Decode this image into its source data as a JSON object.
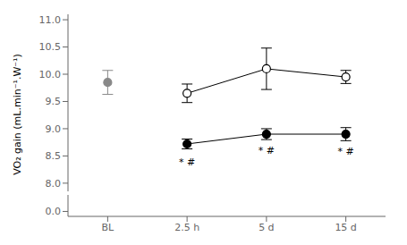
{
  "chart_data": [
    {
      "type": "line",
      "y_label": "VO₂ gain (mL.min⁻¹.W⁻¹)",
      "categories": [
        "BL",
        "2.5 h",
        "5 d",
        "15 d"
      ],
      "tick_labels": "y",
      "series": [
        {
          "type": "scatter",
          "color": "#888888",
          "marker": "circle",
          "values": [
            9.85,
            null,
            null,
            null
          ],
          "errors": [
            0.22,
            null,
            null,
            null
          ]
        },
        {
          "type": "line",
          "color": "#000000",
          "marker": "open_circle",
          "values": [
            null,
            9.65,
            10.1,
            9.95
          ],
          "errors": [
            null,
            0.17,
            0.38,
            0.12
          ]
        },
        {
          "type": "line",
          "color": "#000000",
          "marker": "filled_circle",
          "values": [
            null,
            8.72,
            8.9,
            8.9
          ],
          "errors": [
            null,
            0.09,
            0.1,
            0.12
          ]
        }
      ],
      "annotations": [
        {
          "text": "* #",
          "category": "2.5 h",
          "y": 8.46
        },
        {
          "text": "* #",
          "category": "5 d",
          "y": 8.67
        },
        {
          "text": "* #",
          "category": "15 d",
          "y": 8.65
        }
      ],
      "ylim": [
        7.85,
        11.1
      ],
      "yticks": [
        {
          "value": 8,
          "label": "8.0"
        },
        8.5,
        {
          "value": 9,
          "label": "9.0"
        },
        9.5,
        {
          "value": 10,
          "label": "10.0"
        },
        10.5,
        {
          "value": 11,
          "label": "11.0"
        }
      ]
    },
    {
      "type": "line",
      "categories": [
        "BL",
        "2.5 h",
        "5 d",
        "15 d"
      ],
      "ylim": [
        -0.15,
        0.5
      ],
      "yticks": [
        {
          "value": 0,
          "label": "0.0"
        }
      ]
    }
  ]
}
